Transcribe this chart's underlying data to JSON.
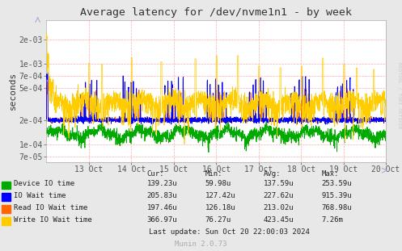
{
  "title": "Average latency for /dev/nvme1n1 - by week",
  "ylabel": "seconds",
  "right_label": "RRDTOOL / TOBI OETIKER",
  "footer": "Munin 2.0.73",
  "last_update": "Last update: Sun Oct 20 22:00:03 2024",
  "x_tick_labels": [
    "13 Oct",
    "14 Oct",
    "15 Oct",
    "16 Oct",
    "17 Oct",
    "18 Oct",
    "19 Oct",
    "20 Oct"
  ],
  "y_tick_labels": [
    "7e-05",
    "1e-04",
    "2e-04",
    "5e-04",
    "7e-04",
    "1e-03",
    "2e-03"
  ],
  "y_tick_values": [
    7e-05,
    0.0001,
    0.0002,
    0.0005,
    0.0007,
    0.001,
    0.002
  ],
  "ylim_min": 6e-05,
  "ylim_max": 0.0035,
  "background_color": "#e8e8e8",
  "plot_bg_color": "#ffffff",
  "grid_color": "#ffaaaa",
  "series": [
    {
      "name": "Device IO time",
      "color": "#00aa00",
      "cur": "139.23u",
      "min": "59.98u",
      "avg": "137.59u",
      "max": "253.59u"
    },
    {
      "name": "IO Wait time",
      "color": "#0000ff",
      "cur": "205.83u",
      "min": "127.42u",
      "avg": "227.62u",
      "max": "915.39u"
    },
    {
      "name": "Read IO Wait time",
      "color": "#ff6600",
      "cur": "197.46u",
      "min": "126.18u",
      "avg": "213.02u",
      "max": "768.98u"
    },
    {
      "name": "Write IO Wait time",
      "color": "#ffcc00",
      "cur": "366.97u",
      "min": "76.27u",
      "avg": "423.45u",
      "max": "7.26m"
    }
  ]
}
